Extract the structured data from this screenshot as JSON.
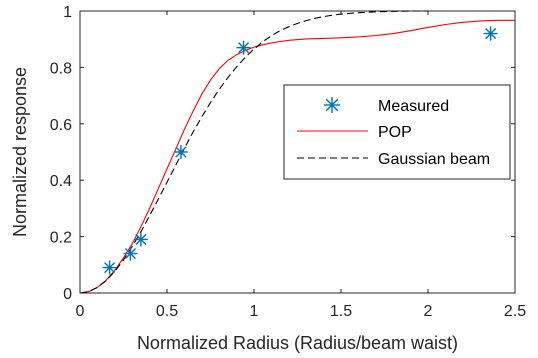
{
  "chart_data": {
    "type": "line",
    "title": "",
    "xlabel": "Normalized Radius (Radius/beam waist)",
    "ylabel": "Normalized response",
    "xlim": [
      0,
      2.5
    ],
    "ylim": [
      0,
      1
    ],
    "xticks": [
      "0",
      "0.5",
      "1",
      "1.5",
      "2",
      "2.5"
    ],
    "yticks": [
      "0",
      "0.2",
      "0.4",
      "0.6",
      "0.8",
      "1"
    ],
    "grid": false,
    "legend_position": "right",
    "series": [
      {
        "name": "Measured",
        "style": "markers",
        "marker": "asterisk",
        "color": "#0072bd",
        "x": [
          0.17,
          0.29,
          0.35,
          0.58,
          0.94,
          2.36
        ],
        "y": [
          0.09,
          0.14,
          0.19,
          0.5,
          0.87,
          0.92
        ]
      },
      {
        "name": "POP",
        "style": "solid",
        "color": "#ff0000",
        "x": [
          0,
          0.05,
          0.1,
          0.15,
          0.2,
          0.25,
          0.3,
          0.35,
          0.4,
          0.45,
          0.5,
          0.55,
          0.6,
          0.65,
          0.7,
          0.75,
          0.8,
          0.85,
          0.9,
          0.95,
          1.0,
          1.05,
          1.1,
          1.15,
          1.2,
          1.3,
          1.4,
          1.5,
          1.6,
          1.7,
          1.8,
          1.9,
          2.0,
          2.1,
          2.2,
          2.3,
          2.4,
          2.5
        ],
        "y": [
          0,
          0.005,
          0.02,
          0.045,
          0.08,
          0.125,
          0.175,
          0.235,
          0.3,
          0.37,
          0.44,
          0.51,
          0.58,
          0.645,
          0.705,
          0.755,
          0.795,
          0.825,
          0.845,
          0.86,
          0.872,
          0.88,
          0.887,
          0.892,
          0.896,
          0.901,
          0.903,
          0.905,
          0.908,
          0.913,
          0.92,
          0.93,
          0.942,
          0.952,
          0.96,
          0.965,
          0.967,
          0.967
        ]
      },
      {
        "name": "Gaussian beam",
        "style": "dashed",
        "color": "#000000",
        "x": [
          0,
          0.05,
          0.1,
          0.15,
          0.2,
          0.25,
          0.3,
          0.35,
          0.4,
          0.45,
          0.5,
          0.55,
          0.6,
          0.65,
          0.7,
          0.75,
          0.8,
          0.85,
          0.9,
          0.95,
          1.0,
          1.05,
          1.1,
          1.15,
          1.2,
          1.25,
          1.3,
          1.35,
          1.4,
          1.45,
          1.5,
          1.6,
          1.7,
          1.8,
          1.9,
          2.0
        ],
        "y": [
          0,
          0.005,
          0.02,
          0.044,
          0.077,
          0.117,
          0.165,
          0.217,
          0.274,
          0.333,
          0.393,
          0.453,
          0.513,
          0.571,
          0.625,
          0.675,
          0.722,
          0.764,
          0.802,
          0.836,
          0.865,
          0.891,
          0.912,
          0.93,
          0.944,
          0.956,
          0.966,
          0.974,
          0.98,
          0.985,
          0.989,
          0.994,
          0.997,
          0.999,
          1.0,
          1.0
        ]
      }
    ]
  }
}
